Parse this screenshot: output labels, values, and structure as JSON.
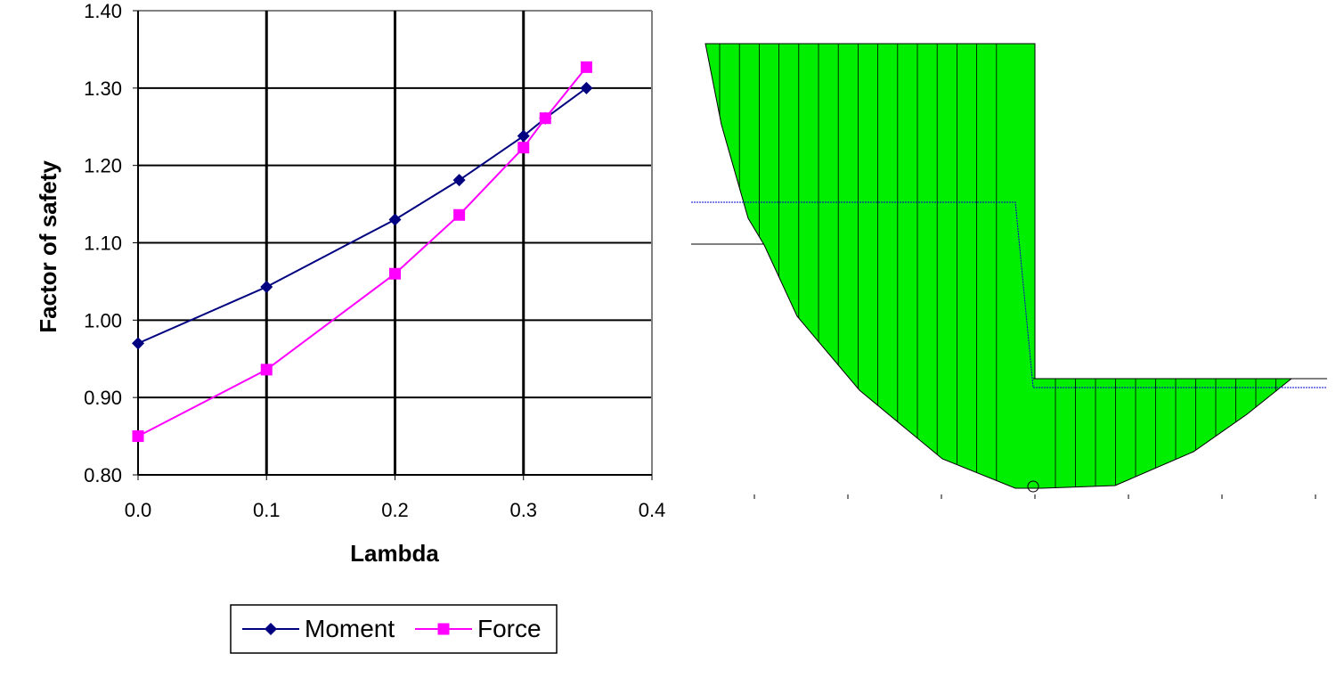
{
  "chart_data": {
    "type": "line",
    "x_label": "Lambda",
    "y_label": "Factor of safety",
    "x": [
      0.0,
      0.1,
      0.2,
      0.25,
      0.3,
      0.317,
      0.349
    ],
    "series": [
      {
        "name": "Moment",
        "color": "#000080",
        "marker": "diamond",
        "values": [
          0.97,
          1.043,
          1.13,
          1.181,
          1.238,
          1.261,
          1.3
        ]
      },
      {
        "name": "Force",
        "color": "#ff00ff",
        "marker": "square",
        "values": [
          0.85,
          0.936,
          1.06,
          1.136,
          1.223,
          1.261,
          1.327
        ]
      }
    ],
    "xlim": [
      0,
      0.4
    ],
    "xticks": [
      {
        "value": 0,
        "label": "0.0"
      },
      0.1,
      0.2,
      0.3,
      0.4
    ],
    "ylim": [
      0.8,
      1.4
    ],
    "yticks": [
      {
        "value": 0.8,
        "label": "0.80"
      },
      {
        "value": 0.9,
        "label": "0.90"
      },
      {
        "value": 1.0,
        "label": "1.00"
      },
      {
        "value": 1.1,
        "label": "1.10"
      },
      {
        "value": 1.2,
        "label": "1.20"
      },
      {
        "value": 1.3,
        "label": "1.30"
      },
      {
        "value": 1.4,
        "label": "1.40"
      }
    ],
    "grid": true,
    "legend": "bottom"
  }
}
